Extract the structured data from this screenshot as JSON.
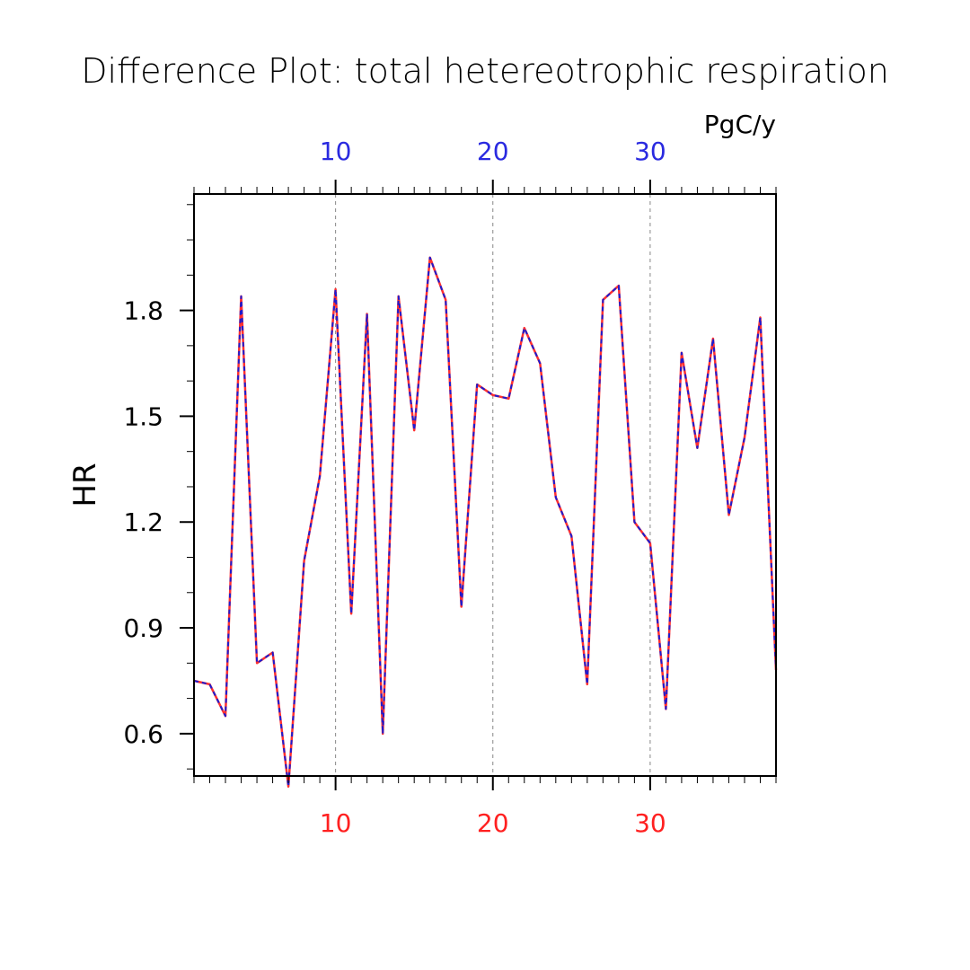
{
  "chart_data": {
    "type": "line",
    "title": "Difference Plot: total hetereotrophic respiration",
    "units_label": "PgC/y",
    "ylabel": "HR",
    "xlabel": "",
    "xlim": [
      1,
      38
    ],
    "ylim": [
      0.48,
      2.13
    ],
    "yticks": [
      0.6,
      0.9,
      1.2,
      1.5,
      1.8
    ],
    "ytick_labels": [
      "0.6",
      "0.9",
      "1.2",
      "1.5",
      "1.8"
    ],
    "xticks": [
      10,
      20,
      30
    ],
    "xtick_labels": [
      "10",
      "20",
      "30"
    ],
    "grid": "vertical dashed at major x ticks",
    "colors": {
      "bottom_axis": "#ff2020",
      "top_axis": "#2a2ae0",
      "series_red": "#ff3030",
      "series_blue": "#1c1cd0"
    },
    "x": [
      1,
      2,
      3,
      4,
      5,
      6,
      7,
      8,
      9,
      10,
      11,
      12,
      13,
      14,
      15,
      16,
      17,
      18,
      19,
      20,
      21,
      22,
      23,
      24,
      25,
      26,
      27,
      28,
      29,
      30,
      31,
      32,
      33,
      34,
      35,
      36,
      37,
      38
    ],
    "series": [
      {
        "values": [
          0.75,
          0.74,
          0.65,
          1.84,
          0.8,
          0.83,
          0.45,
          1.09,
          1.33,
          1.86,
          0.94,
          1.79,
          0.6,
          1.84,
          1.46,
          1.95,
          1.83,
          0.96,
          1.59,
          1.56,
          1.55,
          1.75,
          1.65,
          1.27,
          1.16,
          0.74,
          1.83,
          1.87,
          1.2,
          1.14,
          0.67,
          1.68,
          1.41,
          1.72,
          1.22,
          1.44,
          1.78,
          0.78
        ]
      },
      {
        "values": [
          0.75,
          0.74,
          0.65,
          1.84,
          0.8,
          0.83,
          0.45,
          1.09,
          1.33,
          1.86,
          0.94,
          1.79,
          0.6,
          1.84,
          1.46,
          1.95,
          1.83,
          0.96,
          1.59,
          1.56,
          1.55,
          1.75,
          1.65,
          1.27,
          1.16,
          0.74,
          1.83,
          1.87,
          1.2,
          1.14,
          0.67,
          1.68,
          1.41,
          1.72,
          1.22,
          1.44,
          1.78,
          0.78
        ]
      }
    ]
  }
}
